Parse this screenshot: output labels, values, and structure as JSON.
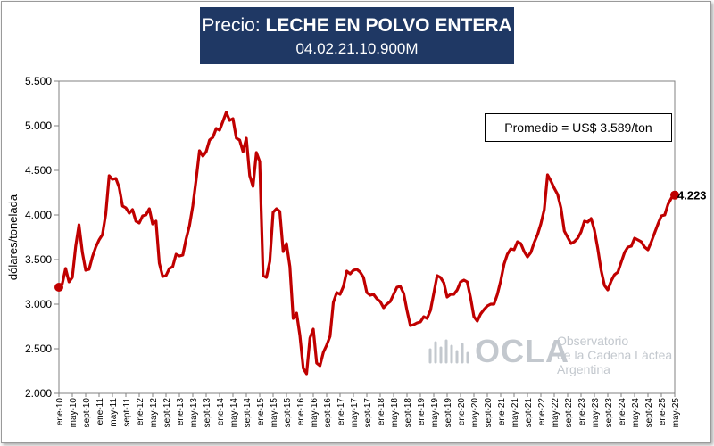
{
  "header": {
    "title_prefix": "Precio: ",
    "title_product": "LECHE EN POLVO ENTERA",
    "subtitle": "04.02.21.10.900M"
  },
  "annotation": {
    "average_label": "Promedio = US$ 3.589/ton",
    "last_value_label": "4.223"
  },
  "watermark": {
    "brand": "OCLA",
    "line1": "Observatorio",
    "line2": "de la Cadena Láctea",
    "line3": "Argentina"
  },
  "colors": {
    "line": "#c00000",
    "title_bg": "#1f3864",
    "watermark": "#c3c8ce"
  },
  "chart_data": {
    "type": "line",
    "title": "Precio: LECHE EN POLVO ENTERA",
    "subtitle": "04.02.21.10.900M",
    "xlabel": "",
    "ylabel": "dólares/tonelada",
    "ylim": [
      2000,
      5500
    ],
    "y_ticks": [
      2000,
      2500,
      3000,
      3500,
      4000,
      4500,
      5000,
      5500
    ],
    "y_tick_labels": [
      "2.000",
      "2.500",
      "3.000",
      "3.500",
      "4.000",
      "4.500",
      "5.000",
      "5.500"
    ],
    "x_tick_labels": [
      "ene-10",
      "may-10",
      "sept-10",
      "ene-11",
      "may-11",
      "sept-11",
      "ene-12",
      "may-12",
      "sept-12",
      "ene-13",
      "may-13",
      "sept-13",
      "ene-14",
      "may-14",
      "sept-14",
      "ene-15",
      "may-15",
      "sept-15",
      "ene-16",
      "may-16",
      "sept-16",
      "ene-17",
      "may-17",
      "sept-17",
      "ene-18",
      "may-18",
      "sept-18",
      "ene-19",
      "may-19",
      "sept-19",
      "ene-20",
      "may-20",
      "sept-20",
      "ene-21",
      "may-21",
      "sept-21",
      "ene-22",
      "may-22",
      "sept-22",
      "ene-23",
      "may-23",
      "sept-23",
      "ene-24",
      "may-24",
      "sept-24",
      "ene-25",
      "may-25"
    ],
    "grid": false,
    "legend": "none",
    "series": [
      {
        "values": [
          3190,
          3230,
          3400,
          3250,
          3300,
          3650,
          3890,
          3580,
          3380,
          3390,
          3530,
          3640,
          3720,
          3780,
          4010,
          4440,
          4400,
          4410,
          4310,
          4100,
          4080,
          4020,
          4060,
          3930,
          3910,
          3990,
          4000,
          4070,
          3900,
          3930,
          3460,
          3310,
          3320,
          3400,
          3420,
          3560,
          3540,
          3550,
          3730,
          3880,
          4100,
          4400,
          4720,
          4660,
          4710,
          4840,
          4870,
          4970,
          4950,
          5050,
          5150,
          5060,
          5080,
          4860,
          4840,
          4710,
          4860,
          4440,
          4320,
          4700,
          4600,
          3320,
          3300,
          3480,
          4030,
          4070,
          4040,
          3590,
          3680,
          3420,
          2840,
          2900,
          2650,
          2280,
          2220,
          2620,
          2720,
          2340,
          2310,
          2460,
          2540,
          2640,
          3020,
          3130,
          3110,
          3200,
          3370,
          3340,
          3380,
          3390,
          3360,
          3300,
          3130,
          3100,
          3110,
          3060,
          3030,
          2960,
          3000,
          3030,
          3110,
          3190,
          3200,
          3120,
          2930,
          2760,
          2770,
          2790,
          2800,
          2860,
          2840,
          2930,
          3120,
          3320,
          3300,
          3240,
          3080,
          3110,
          3110,
          3160,
          3250,
          3270,
          3250,
          3070,
          2860,
          2810,
          2890,
          2940,
          2980,
          3000,
          3000,
          3110,
          3260,
          3450,
          3560,
          3620,
          3610,
          3700,
          3680,
          3590,
          3530,
          3580,
          3690,
          3780,
          3900,
          4060,
          4450,
          4380,
          4300,
          4230,
          4080,
          3820,
          3750,
          3680,
          3700,
          3740,
          3810,
          3930,
          3920,
          3960,
          3830,
          3620,
          3380,
          3210,
          3160,
          3260,
          3330,
          3360,
          3470,
          3580,
          3640,
          3650,
          3740,
          3720,
          3700,
          3640,
          3610,
          3700,
          3800,
          3900,
          3990,
          4000,
          4120,
          4190,
          4223
        ]
      }
    ]
  }
}
